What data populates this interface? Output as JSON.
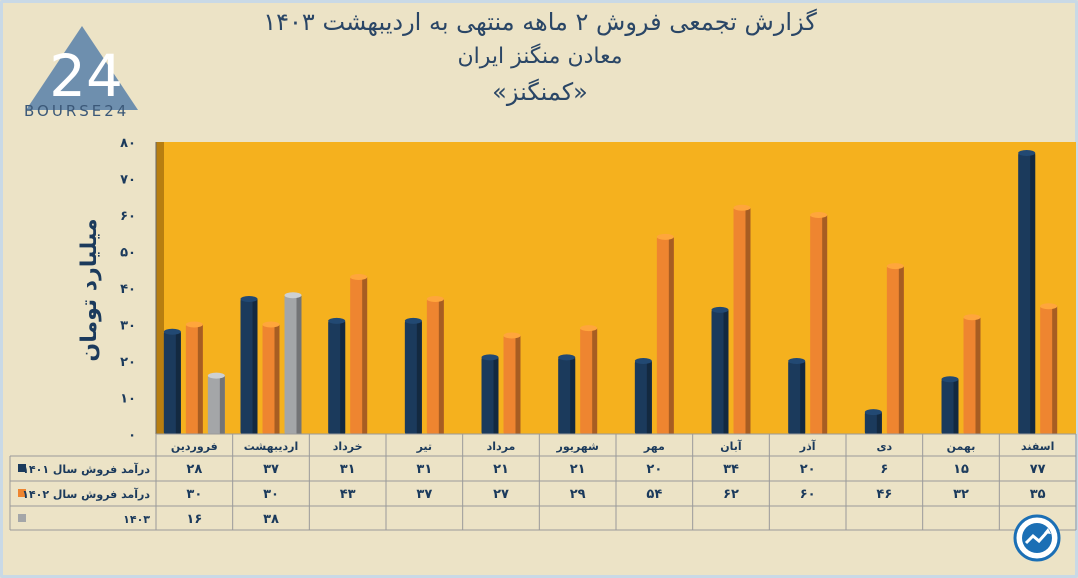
{
  "header": {
    "title_line1": "گزارش تجمعی فروش ۲ ماهه منتهی به اردیبهشت ۱۴۰۳",
    "title_line2": "معادن منگنز ایران",
    "title_line3": "«کمنگنز»"
  },
  "logo": {
    "brand_text": "BOURSE24",
    "mark_text": "24"
  },
  "colors": {
    "plot_bg": "#f5b11e",
    "series_1401": "#1b3a5c",
    "series_1402": "#ee8530",
    "series_1403": "#a4a6a8",
    "axis_text": "#1b3a5c"
  },
  "chart_data": {
    "type": "bar",
    "title": "گزارش تجمعی فروش ۲ ماهه منتهی به اردیبهشت ۱۴۰۳",
    "ylabel": "میلیارد تومان",
    "xlabel": "",
    "ylim": [
      0,
      80
    ],
    "yticks": [
      0,
      10,
      20,
      30,
      40,
      50,
      60,
      70,
      80
    ],
    "ytick_labels": [
      "۰",
      "۱۰",
      "۲۰",
      "۳۰",
      "۴۰",
      "۵۰",
      "۶۰",
      "۷۰",
      "۸۰"
    ],
    "categories": [
      "فروردین",
      "اردیبهشت",
      "خرداد",
      "تیر",
      "مرداد",
      "شهریور",
      "مهر",
      "آبان",
      "آذر",
      "دی",
      "بهمن",
      "اسفند"
    ],
    "series": [
      {
        "name": "درآمد فروش سال ۱۴۰۱",
        "values": [
          28,
          37,
          31,
          31,
          21,
          21,
          20,
          34,
          20,
          6,
          15,
          77
        ],
        "labels": [
          "۲۸",
          "۳۷",
          "۳۱",
          "۳۱",
          "۲۱",
          "۲۱",
          "۲۰",
          "۳۴",
          "۲۰",
          "۶",
          "۱۵",
          "۷۷"
        ]
      },
      {
        "name": "درآمد فروش سال ۱۴۰۲",
        "values": [
          30,
          30,
          43,
          37,
          27,
          29,
          54,
          62,
          60,
          46,
          32,
          35
        ],
        "labels": [
          "۳۰",
          "۳۰",
          "۴۳",
          "۳۷",
          "۲۷",
          "۲۹",
          "۵۴",
          "۶۲",
          "۶۰",
          "۴۶",
          "۳۲",
          "۳۵"
        ]
      },
      {
        "name": "۱۴۰۳",
        "values": [
          16,
          38,
          null,
          null,
          null,
          null,
          null,
          null,
          null,
          null,
          null,
          null
        ],
        "labels": [
          "۱۶",
          "۳۸",
          "",
          "",
          "",
          "",
          "",
          "",
          "",
          "",
          "",
          ""
        ]
      }
    ],
    "legend": "data-table-left"
  }
}
